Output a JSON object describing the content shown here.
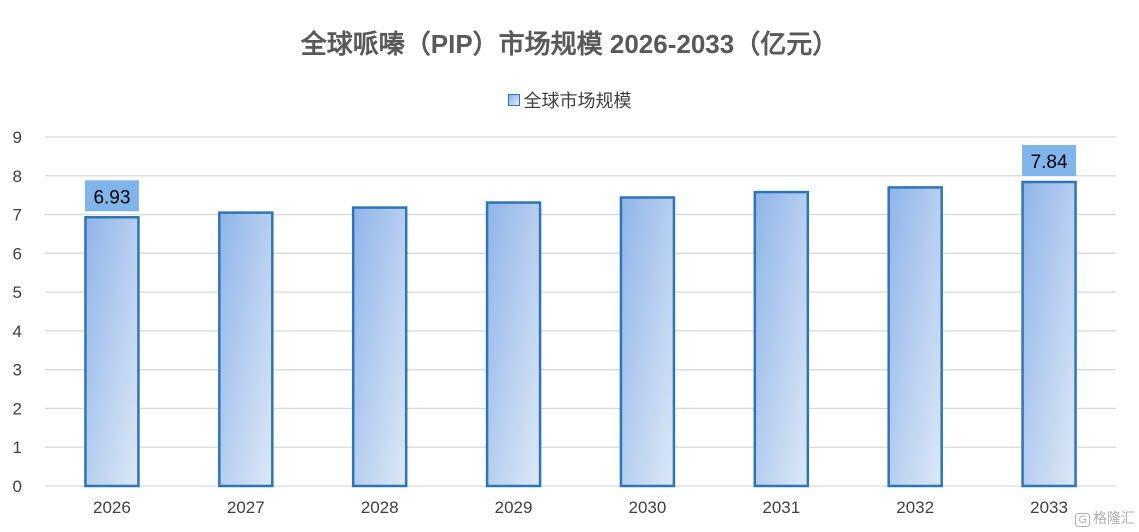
{
  "chart_data": {
    "type": "bar",
    "title": "全球哌嗪（PIP）市场规模 2026-2033（亿元）",
    "categories": [
      "2026",
      "2027",
      "2028",
      "2029",
      "2030",
      "2031",
      "2032",
      "2033"
    ],
    "series": [
      {
        "name": "全球市场规模",
        "values": [
          6.93,
          7.05,
          7.18,
          7.31,
          7.44,
          7.58,
          7.7,
          7.84
        ]
      }
    ],
    "data_labels": [
      {
        "category": "2026",
        "text": "6.93"
      },
      {
        "category": "2033",
        "text": "7.84"
      }
    ],
    "ylim": [
      0,
      9
    ],
    "yticks": [
      "0",
      "1",
      "2",
      "3",
      "4",
      "5",
      "6",
      "7",
      "8",
      "9"
    ],
    "xlabel": "",
    "ylabel": "",
    "grid": true,
    "legend_position": "top"
  },
  "colors": {
    "bar_border": "#2e75b6",
    "bar_fill_start": "#8fb4e8",
    "bar_fill_end": "#dde8f7",
    "label_box": "#7fb5ea",
    "grid": "#d9d9d9"
  },
  "watermark": {
    "text": "格隆汇",
    "icon": "G"
  }
}
